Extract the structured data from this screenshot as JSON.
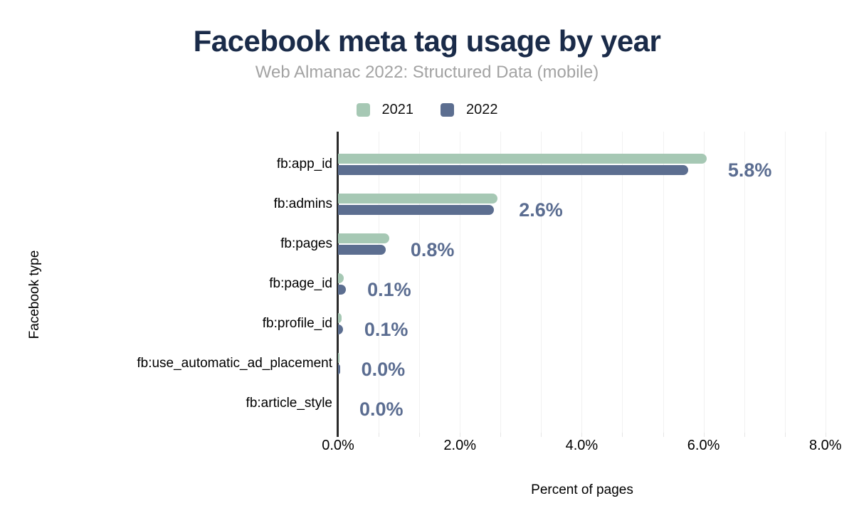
{
  "header": {
    "title": "Facebook meta tag usage by year",
    "subtitle": "Web Almanac 2022: Structured Data (mobile)"
  },
  "colors": {
    "title": "#1a2b49",
    "subtitle": "#a3a3a3",
    "series_2021": "#a6c8b4",
    "series_2022": "#5c6e90",
    "value_label": "#5b6d91",
    "axis_line": "#2b2b2b",
    "gridline": "#f1f1f1"
  },
  "chart_data": {
    "type": "bar",
    "orientation": "horizontal",
    "title": "Facebook meta tag usage by year",
    "subtitle": "Web Almanac 2022: Structured Data (mobile)",
    "xlabel": "Percent of pages",
    "ylabel": "Facebook type",
    "xlim": [
      0,
      8
    ],
    "x_tick_labels": [
      "0.0%",
      "2.0%",
      "4.0%",
      "6.0%",
      "8.0%"
    ],
    "x_major_step_pct": 2,
    "minor_gridlines_per_major": 3,
    "grid": "vertical",
    "legend_position": "top",
    "categories": [
      "fb:app_id",
      "fb:admins",
      "fb:pages",
      "fb:page_id",
      "fb:profile_id",
      "fb:use_automatic_ad_placement",
      "fb:article_style"
    ],
    "series": [
      {
        "name": "2021",
        "color": "#a6c8b4",
        "values": [
          6.05,
          2.62,
          0.84,
          0.09,
          0.06,
          0.02,
          0.0
        ]
      },
      {
        "name": "2022",
        "color": "#5c6e90",
        "values": [
          5.75,
          2.56,
          0.78,
          0.13,
          0.08,
          0.03,
          0.0
        ]
      }
    ],
    "value_labels": [
      "5.8%",
      "2.6%",
      "0.8%",
      "0.1%",
      "0.1%",
      "0.0%",
      "0.0%"
    ]
  }
}
